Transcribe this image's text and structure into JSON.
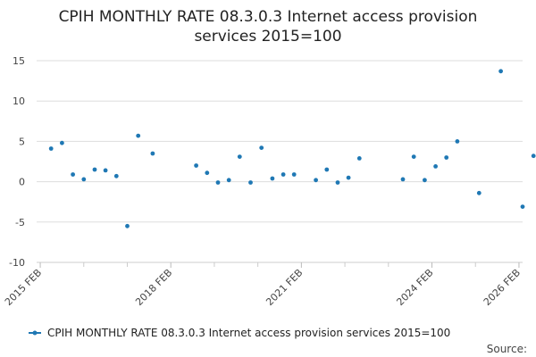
{
  "chart_data": {
    "type": "scatter",
    "title_lines": [
      "CPIH MONTHLY RATE 08.3.0.3 Internet access provision",
      "services 2015=100"
    ],
    "legend_label": "CPIH MONTHLY RATE 08.3.0.3 Internet access provision services 2015=100",
    "source_label": "Source:",
    "ylim": [
      -10,
      15
    ],
    "yticks": [
      -10,
      -5,
      0,
      5,
      10,
      15
    ],
    "xlim": [
      "2015-01",
      "2026-03"
    ],
    "xticks": [
      {
        "label": "2015 FEB",
        "date": "2015-02"
      },
      {
        "label": "2018 FEB",
        "date": "2018-02"
      },
      {
        "label": "2021 FEB",
        "date": "2021-02"
      },
      {
        "label": "2024 FEB",
        "date": "2024-02"
      },
      {
        "label": "2026 FEB",
        "date": "2026-02"
      }
    ],
    "minor_tick_dates": [
      "2016-02",
      "2017-02",
      "2019-02",
      "2020-02",
      "2022-02",
      "2023-02",
      "2025-02"
    ],
    "grid": true,
    "legend_position": "bottom",
    "series": [
      {
        "color": "#1f78b4",
        "points": [
          {
            "x": "2015-05",
            "y": 4.1
          },
          {
            "x": "2015-08",
            "y": 4.8
          },
          {
            "x": "2015-11",
            "y": 0.9
          },
          {
            "x": "2016-02",
            "y": 0.3
          },
          {
            "x": "2016-05",
            "y": 1.5
          },
          {
            "x": "2016-08",
            "y": 1.4
          },
          {
            "x": "2016-11",
            "y": 0.7
          },
          {
            "x": "2017-02",
            "y": -5.5
          },
          {
            "x": "2017-05",
            "y": 5.7
          },
          {
            "x": "2017-09",
            "y": 3.5
          },
          {
            "x": "2018-09",
            "y": 2.0
          },
          {
            "x": "2018-12",
            "y": 1.1
          },
          {
            "x": "2019-03",
            "y": -0.1
          },
          {
            "x": "2019-06",
            "y": 0.2
          },
          {
            "x": "2019-09",
            "y": 3.1
          },
          {
            "x": "2019-12",
            "y": -0.1
          },
          {
            "x": "2020-03",
            "y": 4.2
          },
          {
            "x": "2020-06",
            "y": 0.4
          },
          {
            "x": "2020-09",
            "y": 0.9
          },
          {
            "x": "2020-12",
            "y": 0.9
          },
          {
            "x": "2021-06",
            "y": 0.2
          },
          {
            "x": "2021-09",
            "y": 1.5
          },
          {
            "x": "2021-12",
            "y": -0.1
          },
          {
            "x": "2022-03",
            "y": 0.5
          },
          {
            "x": "2022-06",
            "y": 2.9
          },
          {
            "x": "2023-06",
            "y": 0.3
          },
          {
            "x": "2023-09",
            "y": 3.1
          },
          {
            "x": "2023-12",
            "y": 0.2
          },
          {
            "x": "2024-03",
            "y": 1.9
          },
          {
            "x": "2024-06",
            "y": 3.0
          },
          {
            "x": "2024-09",
            "y": 5.0
          },
          {
            "x": "2025-03",
            "y": -1.4
          },
          {
            "x": "2025-09",
            "y": 13.7
          },
          {
            "x": "2026-03",
            "y": -3.1
          },
          {
            "x": "2026-06",
            "y": 3.2
          }
        ]
      }
    ]
  }
}
